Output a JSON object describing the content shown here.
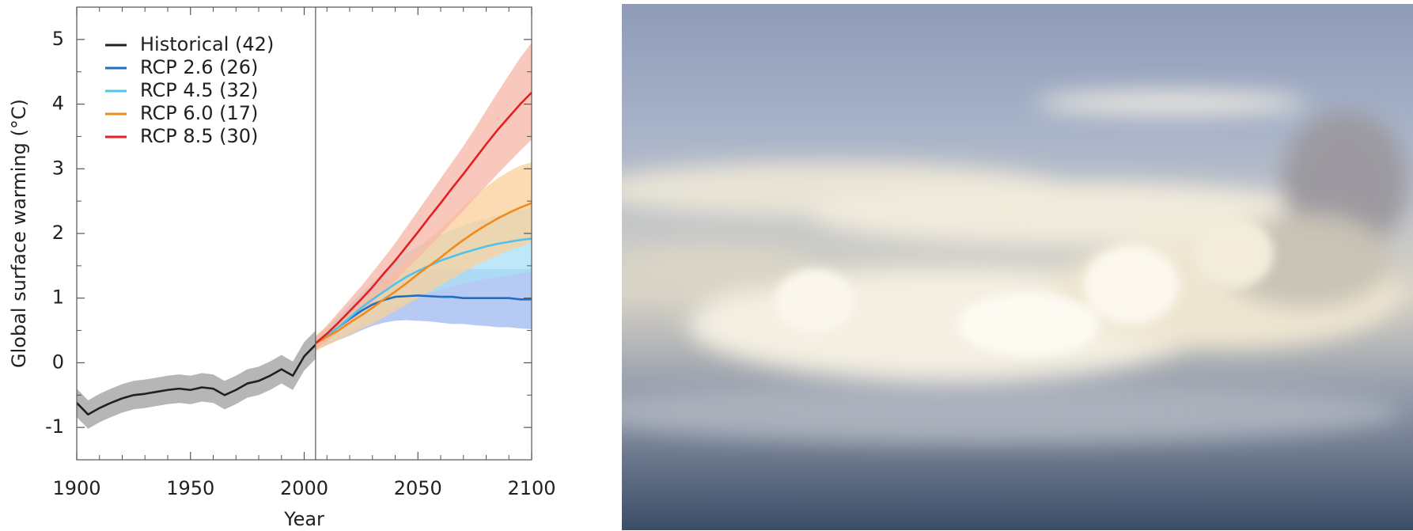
{
  "chart_data": {
    "type": "line",
    "xlabel": "Year",
    "ylabel": "Global surface warming (°C)",
    "xlim": [
      1900,
      2100
    ],
    "ylim": [
      -1.5,
      5.5
    ],
    "xticks": [
      1900,
      1950,
      2000,
      2050,
      2100
    ],
    "xminorticks": [
      1910,
      1920,
      1930,
      1940,
      1960,
      1970,
      1980,
      1990,
      2010,
      2020,
      2030,
      2040,
      2060,
      2070,
      2080,
      2090
    ],
    "yticks": [
      -1,
      0,
      1,
      2,
      3,
      4,
      5
    ],
    "yminorticks": [
      -0.5,
      0.5,
      1.5,
      2.5,
      3.5,
      4.5
    ],
    "reference_x": 2005,
    "legend": "upper left",
    "series": [
      {
        "name": "Historical (42)",
        "color": "#231f20",
        "band_color": "#9d9d9d",
        "x": [
          1900,
          1905,
          1910,
          1915,
          1920,
          1925,
          1930,
          1935,
          1940,
          1945,
          1950,
          1955,
          1960,
          1965,
          1970,
          1975,
          1980,
          1985,
          1990,
          1995,
          2000,
          2005
        ],
        "values": [
          -0.62,
          -0.8,
          -0.7,
          -0.62,
          -0.55,
          -0.5,
          -0.48,
          -0.45,
          -0.42,
          -0.4,
          -0.42,
          -0.38,
          -0.4,
          -0.5,
          -0.42,
          -0.32,
          -0.28,
          -0.2,
          -0.1,
          -0.2,
          0.1,
          0.28
        ],
        "band_low": [
          -0.84,
          -1.02,
          -0.92,
          -0.84,
          -0.77,
          -0.72,
          -0.7,
          -0.67,
          -0.64,
          -0.62,
          -0.64,
          -0.6,
          -0.62,
          -0.72,
          -0.64,
          -0.54,
          -0.5,
          -0.42,
          -0.32,
          -0.42,
          -0.12,
          0.06
        ],
        "band_high": [
          -0.4,
          -0.58,
          -0.48,
          -0.4,
          -0.33,
          -0.28,
          -0.26,
          -0.23,
          -0.2,
          -0.18,
          -0.2,
          -0.16,
          -0.18,
          -0.28,
          -0.2,
          -0.1,
          -0.06,
          0.02,
          0.12,
          0.02,
          0.32,
          0.5
        ]
      },
      {
        "name": "RCP 2.6 (26)",
        "color": "#1f6fc5",
        "band_color": "#9fb8f0",
        "x": [
          2005,
          2010,
          2015,
          2020,
          2025,
          2030,
          2035,
          2040,
          2045,
          2050,
          2055,
          2060,
          2065,
          2070,
          2075,
          2080,
          2085,
          2090,
          2095,
          2100
        ],
        "values": [
          0.3,
          0.42,
          0.55,
          0.68,
          0.8,
          0.9,
          0.97,
          1.02,
          1.03,
          1.04,
          1.03,
          1.02,
          1.02,
          1.0,
          1.0,
          1.0,
          1.0,
          1.0,
          0.98,
          0.98
        ],
        "band_low": [
          0.2,
          0.28,
          0.35,
          0.42,
          0.5,
          0.57,
          0.62,
          0.65,
          0.66,
          0.65,
          0.64,
          0.62,
          0.6,
          0.6,
          0.58,
          0.57,
          0.55,
          0.55,
          0.53,
          0.52
        ],
        "band_high": [
          0.4,
          0.55,
          0.72,
          0.9,
          1.05,
          1.2,
          1.3,
          1.38,
          1.42,
          1.45,
          1.45,
          1.45,
          1.45,
          1.45,
          1.45,
          1.45,
          1.45,
          1.45,
          1.45,
          1.45
        ]
      },
      {
        "name": "RCP 4.5 (32)",
        "color": "#4fc3ee",
        "band_color": "#a8dff5",
        "x": [
          2005,
          2010,
          2015,
          2020,
          2025,
          2030,
          2035,
          2040,
          2045,
          2050,
          2055,
          2060,
          2065,
          2070,
          2075,
          2080,
          2085,
          2090,
          2095,
          2100
        ],
        "values": [
          0.3,
          0.42,
          0.55,
          0.7,
          0.85,
          0.98,
          1.1,
          1.22,
          1.33,
          1.42,
          1.5,
          1.58,
          1.64,
          1.7,
          1.75,
          1.8,
          1.84,
          1.87,
          1.9,
          1.92
        ],
        "band_low": [
          0.2,
          0.3,
          0.4,
          0.5,
          0.6,
          0.7,
          0.8,
          0.88,
          0.95,
          1.02,
          1.08,
          1.13,
          1.18,
          1.22,
          1.26,
          1.3,
          1.32,
          1.35,
          1.38,
          1.4
        ],
        "band_high": [
          0.4,
          0.55,
          0.72,
          0.9,
          1.08,
          1.25,
          1.42,
          1.56,
          1.7,
          1.8,
          1.9,
          1.98,
          2.05,
          2.12,
          2.18,
          2.23,
          2.28,
          2.32,
          2.36,
          2.4
        ]
      },
      {
        "name": "RCP 6.0 (17)",
        "color": "#f08a1c",
        "band_color": "#fbcf9a",
        "x": [
          2005,
          2010,
          2015,
          2020,
          2025,
          2030,
          2035,
          2040,
          2045,
          2050,
          2055,
          2060,
          2065,
          2070,
          2075,
          2080,
          2085,
          2090,
          2095,
          2100
        ],
        "values": [
          0.3,
          0.4,
          0.5,
          0.62,
          0.73,
          0.85,
          0.98,
          1.1,
          1.23,
          1.37,
          1.5,
          1.63,
          1.77,
          1.9,
          2.02,
          2.13,
          2.23,
          2.32,
          2.4,
          2.47
        ],
        "band_low": [
          0.18,
          0.27,
          0.35,
          0.43,
          0.52,
          0.6,
          0.7,
          0.8,
          0.9,
          1.0,
          1.1,
          1.2,
          1.3,
          1.4,
          1.5,
          1.58,
          1.66,
          1.74,
          1.8,
          1.86
        ],
        "band_high": [
          0.42,
          0.55,
          0.68,
          0.82,
          0.96,
          1.1,
          1.26,
          1.42,
          1.58,
          1.75,
          1.92,
          2.08,
          2.25,
          2.42,
          2.58,
          2.72,
          2.85,
          2.96,
          3.05,
          3.1
        ]
      },
      {
        "name": "RCP 8.5 (30)",
        "color": "#e31e24",
        "band_color": "#f7b5a5",
        "x": [
          2005,
          2010,
          2015,
          2020,
          2025,
          2030,
          2035,
          2040,
          2045,
          2050,
          2055,
          2060,
          2065,
          2070,
          2075,
          2080,
          2085,
          2090,
          2095,
          2100
        ],
        "values": [
          0.3,
          0.45,
          0.62,
          0.8,
          0.98,
          1.17,
          1.38,
          1.58,
          1.8,
          2.02,
          2.25,
          2.47,
          2.7,
          2.92,
          3.15,
          3.38,
          3.6,
          3.8,
          4.0,
          4.18
        ],
        "band_low": [
          0.2,
          0.33,
          0.47,
          0.62,
          0.78,
          0.93,
          1.1,
          1.27,
          1.45,
          1.62,
          1.8,
          1.98,
          2.17,
          2.35,
          2.55,
          2.73,
          2.92,
          3.1,
          3.28,
          3.45
        ],
        "band_high": [
          0.4,
          0.58,
          0.78,
          0.98,
          1.18,
          1.4,
          1.62,
          1.85,
          2.1,
          2.35,
          2.6,
          2.85,
          3.1,
          3.35,
          3.62,
          3.9,
          4.18,
          4.45,
          4.72,
          4.95
        ]
      }
    ]
  }
}
